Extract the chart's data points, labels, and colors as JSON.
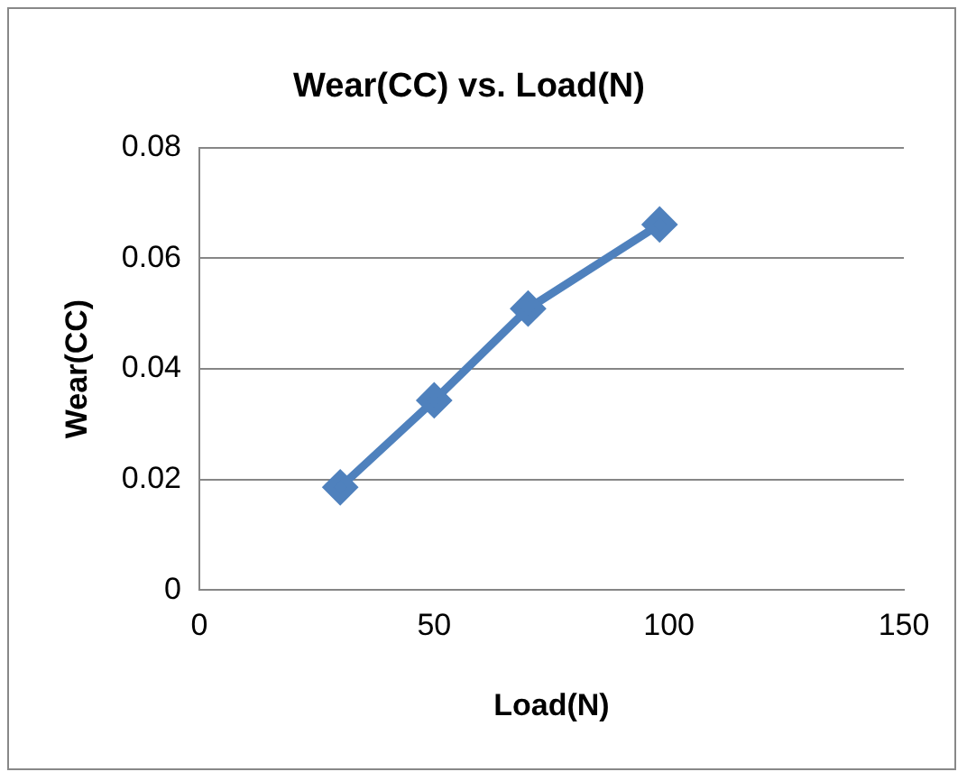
{
  "chart_data": {
    "type": "line",
    "title": "Wear(CC) vs. Load(N)",
    "xlabel": "Load(N)",
    "ylabel": "Wear(CC)",
    "x": [
      30,
      50,
      70,
      98
    ],
    "series": [
      {
        "color": "#4f81bd",
        "values": [
          0.0186,
          0.0343,
          0.0509,
          0.0661
        ]
      }
    ],
    "xlim": [
      0,
      150
    ],
    "xticks": [
      0,
      50,
      100,
      150
    ],
    "ylim": [
      0,
      0.08
    ],
    "yticks": [
      0,
      0.02,
      0.04,
      0.06,
      0.08
    ],
    "grid": "y",
    "legend": false,
    "marker": "diamond",
    "line_style": "solid"
  }
}
